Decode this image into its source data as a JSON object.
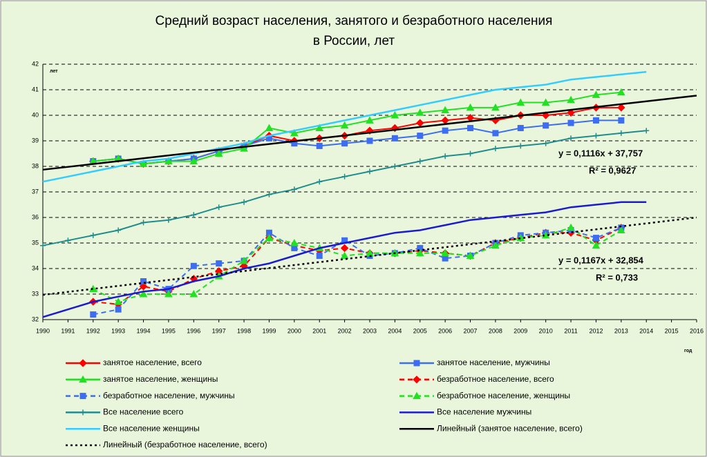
{
  "chart_data": {
    "type": "line",
    "title": [
      "Средний возраст населения, занятого и безработного населения",
      "в России, лет"
    ],
    "y_label": "лет",
    "x_label": "год",
    "x": [
      1990,
      1991,
      1992,
      1993,
      1994,
      1995,
      1996,
      1997,
      1998,
      1999,
      2000,
      2001,
      2002,
      2003,
      2004,
      2005,
      2006,
      2007,
      2008,
      2009,
      2010,
      2011,
      2012,
      2013,
      2014,
      2015,
      2016
    ],
    "xlim": [
      1990,
      2016
    ],
    "ylim": [
      32,
      42
    ],
    "yticks": [
      32,
      33,
      34,
      35,
      36,
      37,
      38,
      39,
      40,
      41,
      42
    ],
    "grid": true,
    "legend": "bottom",
    "series": [
      {
        "name": "занятое население, всего",
        "color": "#ff0000",
        "line_style": "solid",
        "marker": "diamond",
        "values": [
          null,
          null,
          38.2,
          38.3,
          38.1,
          38.2,
          38.3,
          38.6,
          38.8,
          39.2,
          39.0,
          39.1,
          39.2,
          39.4,
          39.5,
          39.7,
          39.8,
          39.9,
          39.8,
          40.0,
          40.0,
          40.1,
          40.3,
          40.3,
          null,
          null,
          null
        ]
      },
      {
        "name": "занятое население, мужчины",
        "color": "#3d6df0",
        "line_style": "solid",
        "marker": "square",
        "values": [
          null,
          null,
          38.2,
          38.3,
          38.1,
          38.2,
          38.3,
          38.6,
          38.8,
          39.1,
          38.9,
          38.8,
          38.9,
          39.0,
          39.1,
          39.2,
          39.4,
          39.5,
          39.3,
          39.5,
          39.6,
          39.7,
          39.8,
          39.8,
          null,
          null,
          null
        ]
      },
      {
        "name": "занятое население, женщины",
        "color": "#22e022",
        "line_style": "solid",
        "marker": "triangle",
        "values": [
          null,
          null,
          38.2,
          38.3,
          38.1,
          38.2,
          38.2,
          38.5,
          38.7,
          39.5,
          39.3,
          39.5,
          39.6,
          39.8,
          40.0,
          40.1,
          40.2,
          40.3,
          40.3,
          40.5,
          40.5,
          40.6,
          40.8,
          40.9,
          null,
          null,
          null
        ]
      },
      {
        "name": "безработное население, всего",
        "color": "#ff0000",
        "line_style": "dashed",
        "marker": "diamond",
        "values": [
          null,
          null,
          32.7,
          32.6,
          33.3,
          33.1,
          33.6,
          33.9,
          34.1,
          35.2,
          34.9,
          34.7,
          34.8,
          34.6,
          34.6,
          34.7,
          34.6,
          34.5,
          35.0,
          35.2,
          35.4,
          35.4,
          35.1,
          35.6,
          null,
          null,
          null
        ]
      },
      {
        "name": "безработное население, мужчины",
        "color": "#3d6df0",
        "line_style": "dashed",
        "marker": "square",
        "values": [
          null,
          null,
          32.2,
          32.4,
          33.5,
          33.2,
          34.1,
          34.2,
          34.3,
          35.4,
          34.8,
          34.5,
          35.1,
          34.5,
          34.6,
          34.8,
          34.4,
          34.5,
          35.0,
          35.3,
          35.4,
          35.5,
          35.2,
          35.6,
          null,
          null,
          null
        ]
      },
      {
        "name": "безработное население, женщины",
        "color": "#22e022",
        "line_style": "dashed",
        "marker": "triangle",
        "values": [
          null,
          null,
          33.2,
          32.7,
          33.0,
          33.0,
          33.0,
          33.7,
          34.3,
          35.2,
          35.0,
          34.8,
          34.5,
          34.6,
          34.6,
          34.6,
          34.6,
          34.5,
          34.9,
          35.2,
          35.3,
          35.6,
          34.9,
          35.5,
          null,
          null,
          null
        ]
      },
      {
        "name": "Все население всего",
        "color": "#1f8c8c",
        "line_style": "solid",
        "marker": "plus",
        "values": [
          34.9,
          35.1,
          35.3,
          35.5,
          35.8,
          35.9,
          36.1,
          36.4,
          36.6,
          36.9,
          37.1,
          37.4,
          37.6,
          37.8,
          38.0,
          38.2,
          38.4,
          38.5,
          38.7,
          38.8,
          38.9,
          39.1,
          39.2,
          39.3,
          39.4,
          null,
          null
        ]
      },
      {
        "name": "Все население мужчины",
        "color": "#1a1ad0",
        "line_style": "solid",
        "marker": "none",
        "values": [
          32.1,
          32.4,
          32.7,
          32.9,
          33.1,
          33.2,
          33.5,
          33.7,
          34.0,
          34.2,
          34.5,
          34.8,
          35.0,
          35.2,
          35.4,
          35.5,
          35.7,
          35.9,
          36.0,
          36.1,
          36.2,
          36.4,
          36.5,
          36.6,
          36.6,
          null,
          null
        ]
      },
      {
        "name": "Все население женщины",
        "color": "#33ccff",
        "line_style": "solid",
        "marker": "none",
        "values": [
          37.4,
          37.6,
          37.8,
          38.0,
          38.2,
          38.3,
          38.5,
          38.7,
          38.9,
          39.2,
          39.4,
          39.6,
          39.8,
          40.0,
          40.2,
          40.4,
          40.6,
          40.8,
          41.0,
          41.1,
          41.2,
          41.4,
          41.5,
          41.6,
          41.7,
          null,
          null
        ]
      },
      {
        "name": "Линейный (занятое население, всего)",
        "color": "#000000",
        "line_style": "solid",
        "marker": "none",
        "x": [
          1990,
          2016
        ],
        "values": [
          37.87,
          40.77
        ]
      },
      {
        "name": "Линейный (безработное население, всего)",
        "color": "#000000",
        "line_style": "dotted",
        "marker": "none",
        "x": [
          1990,
          2016
        ],
        "values": [
          32.97,
          36.0
        ]
      }
    ],
    "annotations": [
      "y = 0,1116x + 37,757",
      "R² = 0,9627",
      "y = 0,1167x + 32,854",
      "R² = 0,733"
    ]
  }
}
